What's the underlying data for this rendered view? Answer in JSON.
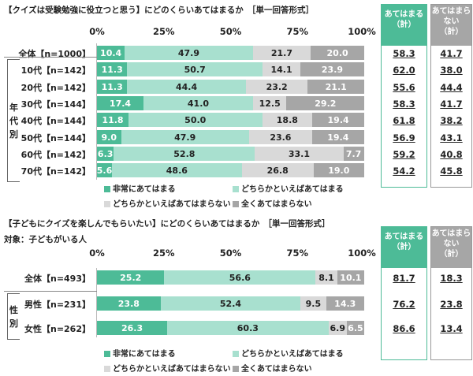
{
  "colors": {
    "very": "#4dbb97",
    "somewhat": "#a8e0cf",
    "somewhat_not": "#d9d9d9",
    "not_at_all": "#a6a6a6"
  },
  "legend": [
    "非常にあてはまる",
    "どちらかといえばあてはまる",
    "どちらかといえばあてはまらない",
    "全くあてはまらない"
  ],
  "header_yes": "あてはまる\n（計）",
  "header_no": "あてはまら\nない\n（計）",
  "chart_data": [
    {
      "type": "bar",
      "stacked": true,
      "orientation": "horizontal",
      "title": "【クイズは受験勉強に役立つと思う】にどのくらいあてはまるか　［単一回答形式］",
      "subtitle": "",
      "group_label": "年代別",
      "x_ticks": [
        "0%",
        "25%",
        "50%",
        "75%",
        "100%"
      ],
      "xlim": [
        0,
        100
      ],
      "categories": [
        "全体【n=1000】",
        "10代【n=142】",
        "20代【n=142】",
        "30代【n=144】",
        "40代【n=144】",
        "50代【n=144】",
        "60代【n=142】",
        "70代【n=142】"
      ],
      "series": [
        {
          "name": "非常にあてはまる",
          "values": [
            10.4,
            11.3,
            11.3,
            17.4,
            11.8,
            9.0,
            6.3,
            5.6
          ]
        },
        {
          "name": "どちらかといえばあてはまる",
          "values": [
            47.9,
            50.7,
            44.4,
            41.0,
            50.0,
            47.9,
            52.8,
            48.6
          ]
        },
        {
          "name": "どちらかといえばあてはまらない",
          "values": [
            21.7,
            14.1,
            23.2,
            12.5,
            18.8,
            23.6,
            33.1,
            26.8
          ]
        },
        {
          "name": "全くあてはまらない",
          "values": [
            20.0,
            23.9,
            21.1,
            29.2,
            19.4,
            19.4,
            7.7,
            19.0
          ]
        }
      ],
      "total_yes": [
        "58.3",
        "62.0",
        "55.6",
        "58.3",
        "61.8",
        "56.9",
        "59.2",
        "54.2"
      ],
      "total_no": [
        "41.7",
        "38.0",
        "44.4",
        "41.7",
        "38.2",
        "43.1",
        "40.8",
        "45.8"
      ]
    },
    {
      "type": "bar",
      "stacked": true,
      "orientation": "horizontal",
      "title": "【子どもにクイズを楽しんでもらいたい】にどのくらいあてはまるか　［単一回答形式］",
      "subtitle": "対象：子どもがいる人",
      "group_label": "性別",
      "x_ticks": [
        "0%",
        "25%",
        "50%",
        "75%",
        "100%"
      ],
      "xlim": [
        0,
        100
      ],
      "categories": [
        "全体【n=493】",
        "男性【n=231】",
        "女性【n=262】"
      ],
      "series": [
        {
          "name": "非常にあてはまる",
          "values": [
            25.2,
            23.8,
            26.3
          ]
        },
        {
          "name": "どちらかといえばあてはまる",
          "values": [
            56.6,
            52.4,
            60.3
          ]
        },
        {
          "name": "どちらかといえばあてはまらない",
          "values": [
            8.1,
            9.5,
            6.9
          ]
        },
        {
          "name": "全くあてはまらない",
          "values": [
            10.1,
            14.3,
            6.5
          ]
        }
      ],
      "total_yes": [
        "81.7",
        "76.2",
        "86.6"
      ],
      "total_no": [
        "18.3",
        "23.8",
        "13.4"
      ]
    }
  ]
}
